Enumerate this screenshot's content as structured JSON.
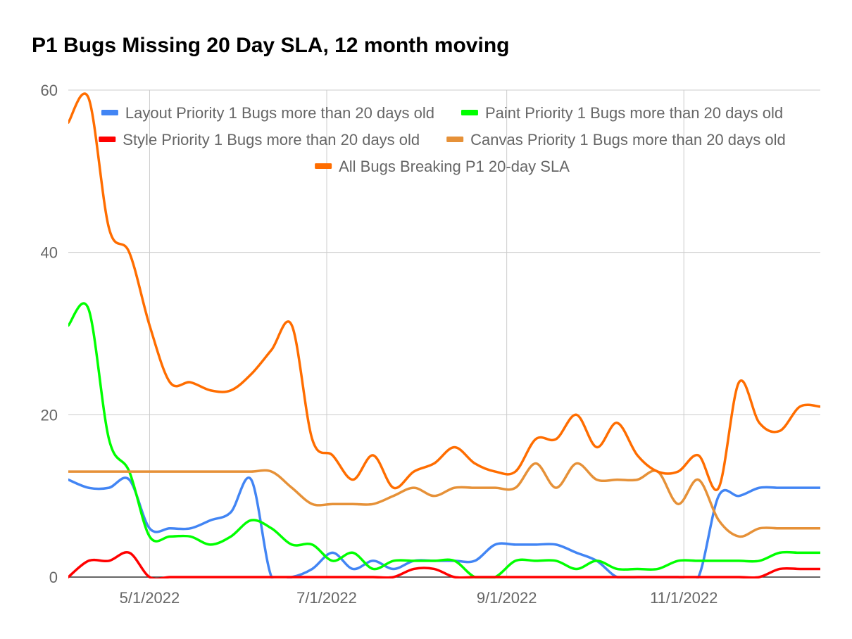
{
  "chart_data": {
    "type": "line",
    "title": "P1 Bugs Missing 20 Day SLA, 12 month moving",
    "xlabel": "",
    "ylabel": "",
    "ylim": [
      0,
      60
    ],
    "yticks": [
      "0",
      "20",
      "40",
      "60"
    ],
    "xtick_labels": [
      {
        "date": "2022-05-01",
        "label": "5/1/2022"
      },
      {
        "date": "2022-07-01",
        "label": "7/1/2022"
      },
      {
        "date": "2022-09-01",
        "label": "9/1/2022"
      },
      {
        "date": "2022-11-01",
        "label": "11/1/2022"
      }
    ],
    "xlim": [
      "2022-04-03",
      "2022-12-18"
    ],
    "grid": true,
    "legend_position": "top",
    "x": [
      "2022-04-03",
      "2022-04-10",
      "2022-04-17",
      "2022-04-24",
      "2022-05-01",
      "2022-05-08",
      "2022-05-15",
      "2022-05-22",
      "2022-05-29",
      "2022-06-05",
      "2022-06-12",
      "2022-06-19",
      "2022-06-26",
      "2022-07-03",
      "2022-07-10",
      "2022-07-17",
      "2022-07-24",
      "2022-07-31",
      "2022-08-07",
      "2022-08-14",
      "2022-08-21",
      "2022-08-28",
      "2022-09-04",
      "2022-09-11",
      "2022-09-18",
      "2022-09-25",
      "2022-10-02",
      "2022-10-09",
      "2022-10-16",
      "2022-10-23",
      "2022-10-30",
      "2022-11-06",
      "2022-11-13",
      "2022-11-20",
      "2022-11-27",
      "2022-12-04",
      "2022-12-11",
      "2022-12-18"
    ],
    "series": [
      {
        "name": "Layout Priority 1 Bugs more than 20 days old",
        "color": "#4285f4",
        "values": [
          12,
          11,
          11,
          12,
          6,
          6,
          6,
          7,
          8,
          12,
          0,
          0,
          1,
          3,
          1,
          2,
          1,
          2,
          2,
          2,
          2,
          4,
          4,
          4,
          4,
          3,
          2,
          0,
          0,
          0,
          0,
          0,
          10,
          10,
          11,
          11,
          11,
          11
        ]
      },
      {
        "name": "Paint Priority 1 Bugs more than 20 days old",
        "color": "#00ff00",
        "values": [
          31,
          33,
          17,
          13,
          5,
          5,
          5,
          4,
          5,
          7,
          6,
          4,
          4,
          2,
          3,
          1,
          2,
          2,
          2,
          2,
          0,
          0,
          2,
          2,
          2,
          1,
          2,
          1,
          1,
          1,
          2,
          2,
          2,
          2,
          2,
          3,
          3,
          3
        ]
      },
      {
        "name": "Style Priority 1 Bugs more than 20 days old",
        "color": "#ff0000",
        "values": [
          0,
          2,
          2,
          3,
          0,
          0,
          0,
          0,
          0,
          0,
          0,
          0,
          0,
          0,
          0,
          0,
          0,
          1,
          1,
          0,
          0,
          0,
          0,
          0,
          0,
          0,
          0,
          0,
          0,
          0,
          0,
          0,
          0,
          0,
          0,
          1,
          1,
          1
        ]
      },
      {
        "name": "Canvas Priority 1 Bugs more than 20 days old",
        "color": "#e69138",
        "values": [
          13,
          13,
          13,
          13,
          13,
          13,
          13,
          13,
          13,
          13,
          13,
          11,
          9,
          9,
          9,
          9,
          10,
          11,
          10,
          11,
          11,
          11,
          11,
          14,
          11,
          14,
          12,
          12,
          12,
          13,
          9,
          12,
          7,
          5,
          6,
          6,
          6,
          6
        ]
      },
      {
        "name": "All Bugs Breaking P1 20-day SLA",
        "color": "#ff6d00",
        "values": [
          56,
          59,
          43,
          40,
          31,
          24,
          24,
          23,
          23,
          25,
          28,
          31,
          17,
          15,
          12,
          15,
          11,
          13,
          14,
          16,
          14,
          13,
          13,
          17,
          17,
          20,
          16,
          19,
          15,
          13,
          13,
          15,
          11,
          24,
          19,
          18,
          21,
          21
        ]
      }
    ]
  }
}
